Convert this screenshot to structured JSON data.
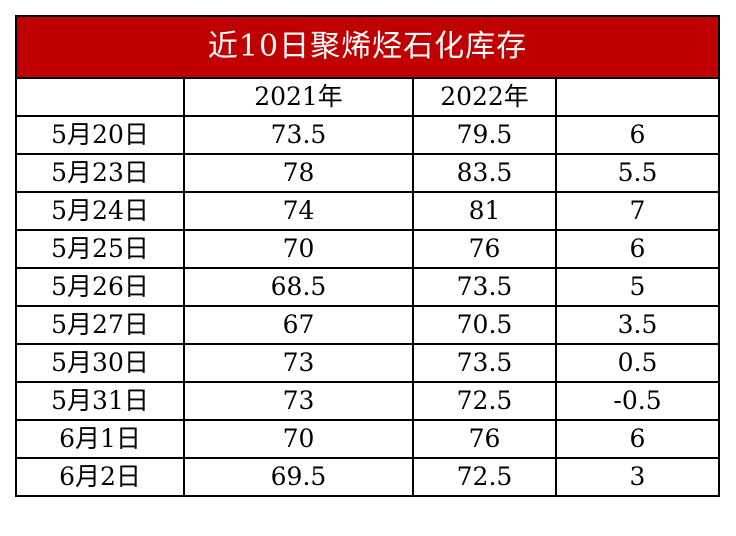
{
  "table": {
    "title": "近10日聚烯烃石化库存",
    "headers": [
      "",
      "2021年",
      "2022年",
      ""
    ],
    "rows": [
      {
        "date": "5月20日",
        "y2021": "73.5",
        "y2022": "79.5",
        "diff": "6"
      },
      {
        "date": "5月23日",
        "y2021": "78",
        "y2022": "83.5",
        "diff": "5.5"
      },
      {
        "date": "5月24日",
        "y2021": "74",
        "y2022": "81",
        "diff": "7"
      },
      {
        "date": "5月25日",
        "y2021": "70",
        "y2022": "76",
        "diff": "6"
      },
      {
        "date": "5月26日",
        "y2021": "68.5",
        "y2022": "73.5",
        "diff": "5"
      },
      {
        "date": "5月27日",
        "y2021": "67",
        "y2022": "70.5",
        "diff": "3.5"
      },
      {
        "date": "5月30日",
        "y2021": "73",
        "y2022": "73.5",
        "diff": "0.5"
      },
      {
        "date": "5月31日",
        "y2021": "73",
        "y2022": "72.5",
        "diff": "-0.5"
      },
      {
        "date": "6月1日",
        "y2021": "70",
        "y2022": "76",
        "diff": "6"
      },
      {
        "date": "6月2日",
        "y2021": "69.5",
        "y2022": "72.5",
        "diff": "3"
      }
    ]
  },
  "colors": {
    "title_background": "#c00000",
    "title_text": "#ffffff",
    "border": "#000000"
  }
}
